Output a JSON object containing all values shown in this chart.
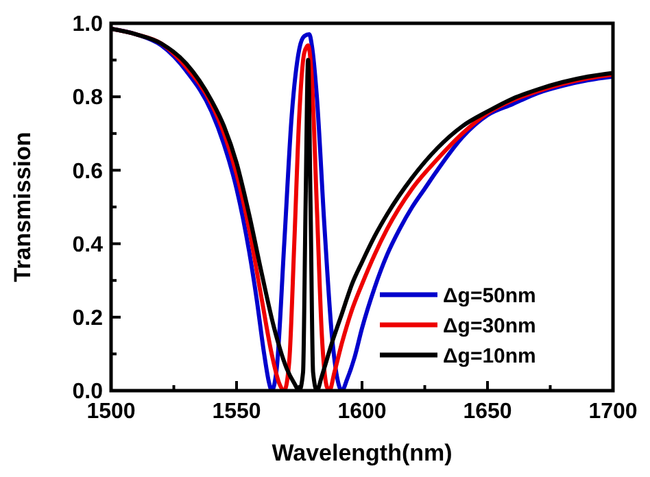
{
  "chart_data": {
    "type": "line",
    "xlabel": "Wavelength(nm)",
    "ylabel": "Transmission",
    "xlim": [
      1500,
      1700
    ],
    "ylim": [
      0,
      1
    ],
    "xticks": [
      1500,
      {
        "value": 1525,
        "label": null
      },
      1550,
      {
        "value": 1575,
        "label": null
      },
      1600,
      {
        "value": 1625,
        "label": null
      },
      1650,
      {
        "value": 1675,
        "label": null
      },
      1700
    ],
    "yticks": [
      {
        "value": 0,
        "label": "0.0"
      },
      {
        "value": 0.1,
        "label": null
      },
      0.2,
      {
        "value": 0.3,
        "label": null
      },
      0.4,
      {
        "value": 0.5,
        "label": null
      },
      0.6,
      {
        "value": 0.7,
        "label": null
      },
      0.8,
      {
        "value": 0.9,
        "label": null
      },
      {
        "value": 1,
        "label": "1.0"
      }
    ],
    "grid": false,
    "legend": "bottom right",
    "line_style": "solid",
    "series": [
      {
        "name": "Δg=50nm",
        "color": "#0000cc",
        "x": [
          1500,
          1510,
          1520,
          1525,
          1530,
          1540,
          1545,
          1550,
          1555,
          1558,
          1561,
          1563,
          1564,
          1566,
          1569,
          1572,
          1575,
          1577,
          1579,
          1580,
          1582,
          1585,
          1588,
          1591,
          1592,
          1594,
          1597,
          1600,
          1605,
          1610,
          1615,
          1620,
          1625,
          1630,
          1640,
          1650,
          1660,
          1670,
          1680,
          1690,
          1700
        ],
        "values": [
          0.985,
          0.97,
          0.94,
          0.91,
          0.87,
          0.76,
          0.67,
          0.55,
          0.38,
          0.25,
          0.1,
          0.02,
          0,
          0.06,
          0.4,
          0.75,
          0.93,
          0.965,
          0.97,
          0.94,
          0.8,
          0.45,
          0.15,
          0.01,
          0,
          0.03,
          0.09,
          0.17,
          0.28,
          0.37,
          0.44,
          0.5,
          0.55,
          0.6,
          0.69,
          0.75,
          0.78,
          0.81,
          0.83,
          0.845,
          0.855
        ]
      },
      {
        "name": "Δg=30nm",
        "color": "#ee0000",
        "x": [
          1500,
          1510,
          1520,
          1530,
          1540,
          1545,
          1550,
          1555,
          1560,
          1564,
          1567,
          1569,
          1571,
          1573,
          1575,
          1577,
          1578.5,
          1580,
          1582,
          1584,
          1586,
          1587,
          1589,
          1592,
          1596,
          1600,
          1605,
          1610,
          1620,
          1630,
          1640,
          1650,
          1660,
          1670,
          1680,
          1690,
          1700
        ],
        "values": [
          0.985,
          0.97,
          0.945,
          0.88,
          0.78,
          0.7,
          0.59,
          0.44,
          0.25,
          0.1,
          0.02,
          0,
          0.08,
          0.4,
          0.75,
          0.92,
          0.94,
          0.85,
          0.5,
          0.15,
          0.01,
          0,
          0.05,
          0.13,
          0.22,
          0.29,
          0.37,
          0.44,
          0.55,
          0.63,
          0.7,
          0.755,
          0.79,
          0.815,
          0.835,
          0.85,
          0.86
        ]
      },
      {
        "name": "Δg=10nm",
        "color": "#000000",
        "x": [
          1500,
          1510,
          1520,
          1530,
          1540,
          1545,
          1550,
          1555,
          1560,
          1565,
          1570,
          1573,
          1575,
          1576.5,
          1577.5,
          1578.5,
          1579.5,
          1580.5,
          1582,
          1584,
          1588,
          1592,
          1596,
          1600,
          1605,
          1610,
          1620,
          1630,
          1640,
          1650,
          1660,
          1670,
          1680,
          1690,
          1700
        ],
        "values": [
          0.985,
          0.97,
          0.945,
          0.89,
          0.79,
          0.72,
          0.62,
          0.48,
          0.32,
          0.17,
          0.06,
          0.02,
          0,
          0.05,
          0.5,
          0.9,
          0.5,
          0.05,
          0,
          0.04,
          0.13,
          0.21,
          0.29,
          0.35,
          0.42,
          0.48,
          0.58,
          0.66,
          0.72,
          0.76,
          0.795,
          0.82,
          0.84,
          0.855,
          0.865
        ]
      }
    ]
  }
}
